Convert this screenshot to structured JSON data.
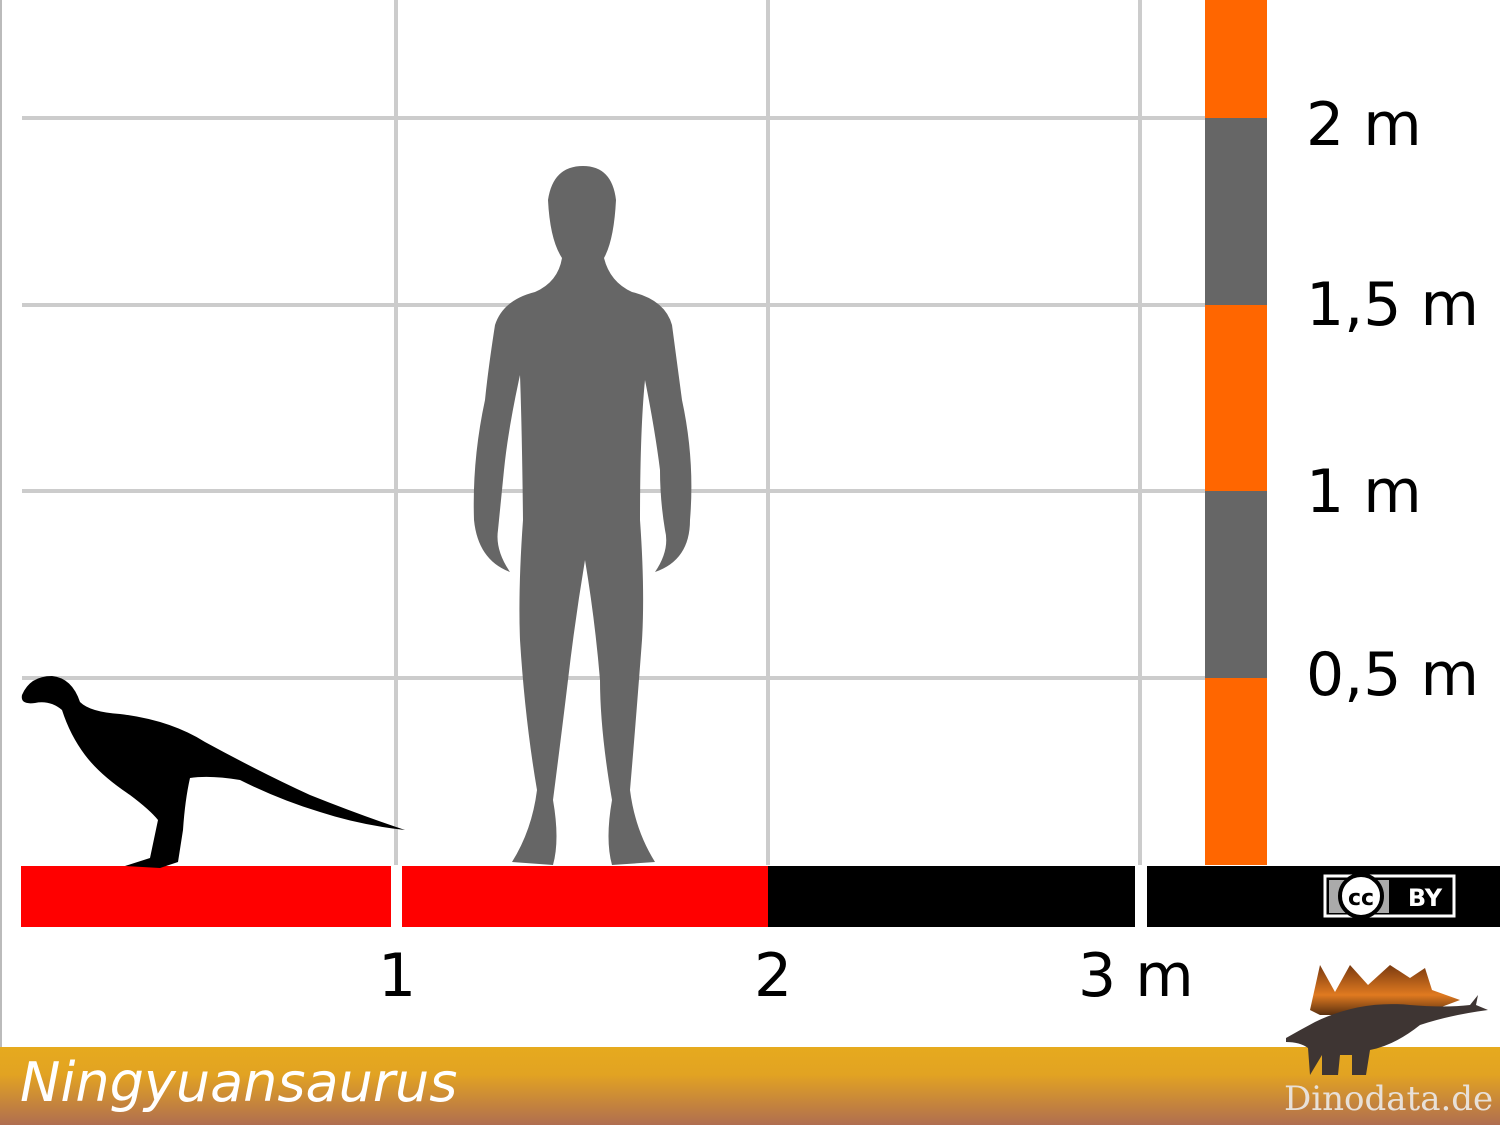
{
  "title": "Ningyuansaurus",
  "x_axis": {
    "ticks": [
      {
        "value": 1,
        "label": "1"
      },
      {
        "value": 2,
        "label": "2"
      },
      {
        "value": 3,
        "label": "3 m"
      }
    ]
  },
  "y_axis": {
    "ticks": [
      {
        "value": 0.5,
        "label": "0,5 m"
      },
      {
        "value": 1,
        "label": "1 m"
      },
      {
        "value": 1.5,
        "label": "1,5 m"
      },
      {
        "value": 2,
        "label": "2 m"
      }
    ]
  },
  "silhouettes": [
    {
      "name": "ningyuansaurus",
      "color": "#000000"
    },
    {
      "name": "human",
      "color": "#666666"
    }
  ],
  "license": {
    "cc": "cc",
    "by": "BY"
  },
  "brand": "Dinodata.de",
  "colors": {
    "orange": "#ff6600",
    "gray": "#666666",
    "red": "#ff0000",
    "black": "#000000",
    "grid": "#cccccc",
    "footer_top": "#e6aa1e",
    "footer_bottom": "#b06e50"
  }
}
